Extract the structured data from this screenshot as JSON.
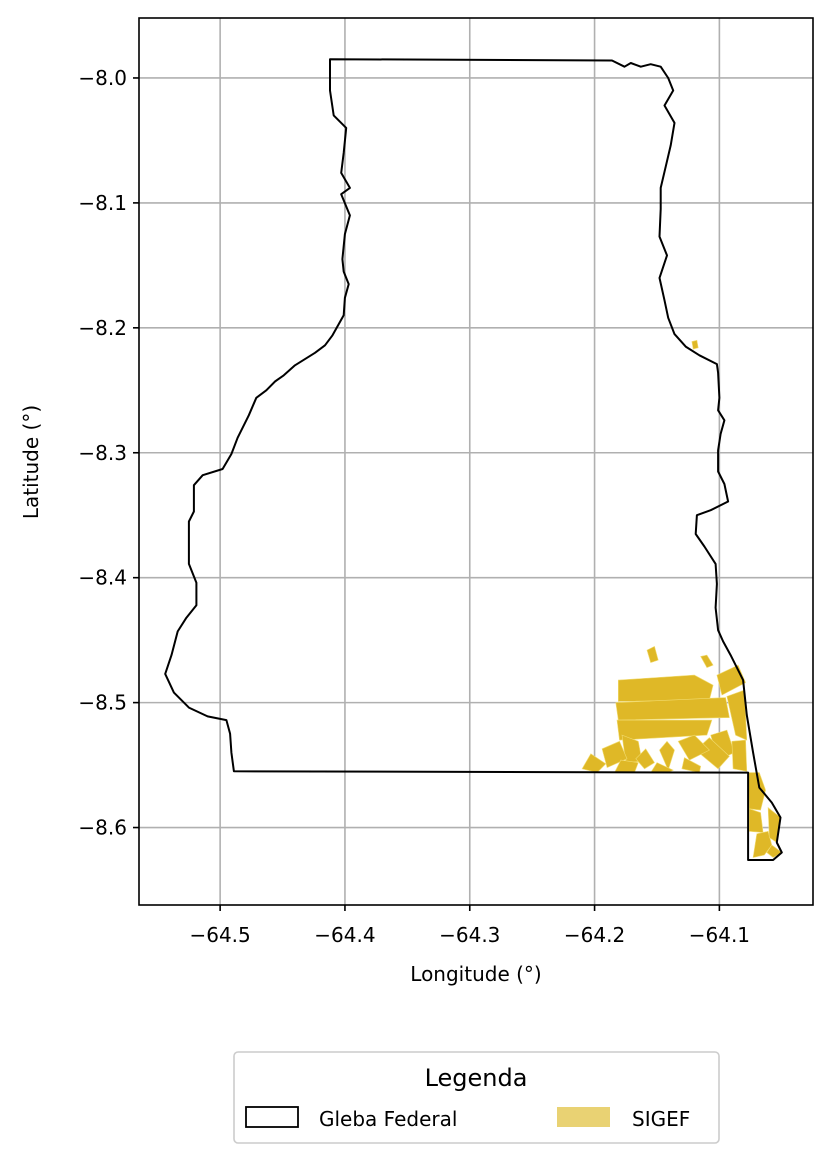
{
  "map": {
    "xlabel": "Longitude (°)",
    "ylabel": "Latitude (°)",
    "xlim": [
      -64.565,
      -64.025
    ],
    "ylim": [
      -8.662,
      -7.952
    ],
    "grid": true,
    "xticks": [
      -64.5,
      -64.4,
      -64.3,
      -64.2,
      -64.1
    ],
    "yticks": [
      -8.0,
      -8.1,
      -8.2,
      -8.3,
      -8.4,
      -8.5,
      -8.6
    ],
    "xtick_labels": [
      "−64.5",
      "−64.4",
      "−64.3",
      "−64.2",
      "−64.1"
    ],
    "ytick_labels": [
      "−8.0",
      "−8.1",
      "−8.2",
      "−8.3",
      "−8.4",
      "−8.5",
      "−8.6"
    ]
  },
  "colors": {
    "gleba_outline": "#000000",
    "sigef_fill": "#dfb827",
    "sigef_legend_fill": "#e9d273",
    "grid": "#b0b0b0"
  },
  "legend": {
    "title": "Legenda",
    "items": [
      {
        "label": "Gleba Federal"
      },
      {
        "label": "SIGEF"
      }
    ]
  },
  "chart_data": {
    "type": "map",
    "gleba_federal_outline": [
      [
        -64.412,
        -7.985
      ],
      [
        -64.186,
        -7.986
      ],
      [
        -64.176,
        -7.991
      ],
      [
        -64.171,
        -7.988
      ],
      [
        -64.163,
        -7.991
      ],
      [
        -64.155,
        -7.989
      ],
      [
        -64.147,
        -7.991
      ],
      [
        -64.141,
        -8.0
      ],
      [
        -64.137,
        -8.01
      ],
      [
        -64.144,
        -8.022
      ],
      [
        -64.136,
        -8.036
      ],
      [
        -64.139,
        -8.054
      ],
      [
        -64.143,
        -8.071
      ],
      [
        -64.147,
        -8.088
      ],
      [
        -64.147,
        -8.105
      ],
      [
        -64.148,
        -8.127
      ],
      [
        -64.142,
        -8.142
      ],
      [
        -64.148,
        -8.16
      ],
      [
        -64.144,
        -8.178
      ],
      [
        -64.141,
        -8.192
      ],
      [
        -64.136,
        -8.205
      ],
      [
        -64.127,
        -8.215
      ],
      [
        -64.116,
        -8.222
      ],
      [
        -64.102,
        -8.229
      ],
      [
        -64.101,
        -8.236
      ],
      [
        -64.1,
        -8.256
      ],
      [
        -64.101,
        -8.266
      ],
      [
        -64.096,
        -8.274
      ],
      [
        -64.099,
        -8.285
      ],
      [
        -64.101,
        -8.298
      ],
      [
        -64.101,
        -8.315
      ],
      [
        -64.096,
        -8.325
      ],
      [
        -64.093,
        -8.339
      ],
      [
        -64.107,
        -8.346
      ],
      [
        -64.118,
        -8.35
      ],
      [
        -64.119,
        -8.365
      ],
      [
        -64.112,
        -8.375
      ],
      [
        -64.103,
        -8.389
      ],
      [
        -64.102,
        -8.405
      ],
      [
        -64.103,
        -8.424
      ],
      [
        -64.101,
        -8.442
      ],
      [
        -64.097,
        -8.451
      ],
      [
        -64.091,
        -8.462
      ],
      [
        -64.081,
        -8.482
      ],
      [
        -64.078,
        -8.51
      ],
      [
        -64.073,
        -8.54
      ],
      [
        -64.068,
        -8.568
      ],
      [
        -64.058,
        -8.58
      ],
      [
        -64.051,
        -8.592
      ],
      [
        -64.054,
        -8.612
      ],
      [
        -64.05,
        -8.62
      ],
      [
        -64.057,
        -8.626
      ],
      [
        -64.077,
        -8.626
      ],
      [
        -64.077,
        -8.556
      ],
      [
        -64.489,
        -8.555
      ],
      [
        -64.491,
        -8.54
      ],
      [
        -64.492,
        -8.525
      ],
      [
        -64.495,
        -8.514
      ],
      [
        -64.51,
        -8.511
      ],
      [
        -64.525,
        -8.504
      ],
      [
        -64.537,
        -8.492
      ],
      [
        -64.544,
        -8.477
      ],
      [
        -64.539,
        -8.462
      ],
      [
        -64.534,
        -8.443
      ],
      [
        -64.527,
        -8.432
      ],
      [
        -64.519,
        -8.422
      ],
      [
        -64.519,
        -8.404
      ],
      [
        -64.525,
        -8.389
      ],
      [
        -64.525,
        -8.355
      ],
      [
        -64.521,
        -8.347
      ],
      [
        -64.521,
        -8.326
      ],
      [
        -64.514,
        -8.318
      ],
      [
        -64.498,
        -8.313
      ],
      [
        -64.491,
        -8.301
      ],
      [
        -64.486,
        -8.288
      ],
      [
        -64.477,
        -8.27
      ],
      [
        -64.471,
        -8.256
      ],
      [
        -64.463,
        -8.25
      ],
      [
        -64.456,
        -8.243
      ],
      [
        -64.449,
        -8.238
      ],
      [
        -64.44,
        -8.23
      ],
      [
        -64.424,
        -8.22
      ],
      [
        -64.416,
        -8.214
      ],
      [
        -64.41,
        -8.206
      ],
      [
        -64.401,
        -8.19
      ],
      [
        -64.4,
        -8.176
      ],
      [
        -64.397,
        -8.165
      ],
      [
        -64.401,
        -8.155
      ],
      [
        -64.402,
        -8.145
      ],
      [
        -64.4,
        -8.125
      ],
      [
        -64.396,
        -8.11
      ],
      [
        -64.403,
        -8.093
      ],
      [
        -64.396,
        -8.088
      ],
      [
        -64.403,
        -8.076
      ],
      [
        -64.401,
        -8.06
      ],
      [
        -64.399,
        -8.04
      ],
      [
        -64.409,
        -8.03
      ],
      [
        -64.412,
        -8.01
      ],
      [
        -64.412,
        -7.985
      ]
    ],
    "sigef_parcels": [
      [
        [
          -64.181,
          -8.482
        ],
        [
          -64.12,
          -8.478
        ],
        [
          -64.105,
          -8.486
        ],
        [
          -64.108,
          -8.498
        ],
        [
          -64.181,
          -8.499
        ]
      ],
      [
        [
          -64.183,
          -8.5
        ],
        [
          -64.095,
          -8.496
        ],
        [
          -64.092,
          -8.512
        ],
        [
          -64.181,
          -8.514
        ]
      ],
      [
        [
          -64.182,
          -8.514
        ],
        [
          -64.106,
          -8.514
        ],
        [
          -64.11,
          -8.526
        ],
        [
          -64.18,
          -8.53
        ]
      ],
      [
        [
          -64.102,
          -8.478
        ],
        [
          -64.085,
          -8.47
        ],
        [
          -64.079,
          -8.484
        ],
        [
          -64.098,
          -8.494
        ]
      ],
      [
        [
          -64.094,
          -8.495
        ],
        [
          -64.08,
          -8.49
        ],
        [
          -64.078,
          -8.53
        ],
        [
          -64.087,
          -8.526
        ]
      ],
      [
        [
          -64.107,
          -8.526
        ],
        [
          -64.094,
          -8.522
        ],
        [
          -64.088,
          -8.54
        ],
        [
          -64.101,
          -8.546
        ]
      ],
      [
        [
          -64.108,
          -8.528
        ],
        [
          -64.119,
          -8.538
        ],
        [
          -64.101,
          -8.553
        ],
        [
          -64.092,
          -8.543
        ]
      ],
      [
        [
          -64.09,
          -8.531
        ],
        [
          -64.079,
          -8.53
        ],
        [
          -64.078,
          -8.555
        ],
        [
          -64.089,
          -8.553
        ]
      ],
      [
        [
          -64.133,
          -8.531
        ],
        [
          -64.12,
          -8.526
        ],
        [
          -64.108,
          -8.538
        ],
        [
          -64.124,
          -8.546
        ]
      ],
      [
        [
          -64.142,
          -8.531
        ],
        [
          -64.136,
          -8.538
        ],
        [
          -64.141,
          -8.554
        ],
        [
          -64.148,
          -8.538
        ]
      ],
      [
        [
          -64.128,
          -8.544
        ],
        [
          -64.115,
          -8.551
        ],
        [
          -64.116,
          -8.556
        ],
        [
          -64.13,
          -8.553
        ]
      ],
      [
        [
          -64.15,
          -8.548
        ],
        [
          -64.137,
          -8.554
        ],
        [
          -64.141,
          -8.556
        ],
        [
          -64.155,
          -8.556
        ]
      ],
      [
        [
          -64.178,
          -8.526
        ],
        [
          -64.165,
          -8.531
        ],
        [
          -64.162,
          -8.547
        ],
        [
          -64.175,
          -8.548
        ]
      ],
      [
        [
          -64.194,
          -8.537
        ],
        [
          -64.18,
          -8.531
        ],
        [
          -64.174,
          -8.545
        ],
        [
          -64.19,
          -8.552
        ]
      ],
      [
        [
          -64.203,
          -8.541
        ],
        [
          -64.191,
          -8.549
        ],
        [
          -64.198,
          -8.556
        ],
        [
          -64.21,
          -8.553
        ]
      ],
      [
        [
          -64.179,
          -8.546
        ],
        [
          -64.165,
          -8.548
        ],
        [
          -64.168,
          -8.556
        ],
        [
          -64.184,
          -8.556
        ]
      ],
      [
        [
          -64.159,
          -8.537
        ],
        [
          -64.152,
          -8.548
        ],
        [
          -64.16,
          -8.553
        ],
        [
          -64.167,
          -8.545
        ]
      ],
      [
        [
          -64.077,
          -8.556
        ],
        [
          -64.068,
          -8.556
        ],
        [
          -64.063,
          -8.57
        ],
        [
          -64.067,
          -8.586
        ],
        [
          -64.076,
          -8.585
        ]
      ],
      [
        [
          -64.076,
          -8.585
        ],
        [
          -64.067,
          -8.588
        ],
        [
          -64.065,
          -8.604
        ],
        [
          -64.076,
          -8.603
        ]
      ],
      [
        [
          -64.07,
          -8.605
        ],
        [
          -64.061,
          -8.603
        ],
        [
          -64.058,
          -8.614
        ],
        [
          -64.064,
          -8.622
        ],
        [
          -64.073,
          -8.624
        ]
      ],
      [
        [
          -64.061,
          -8.584
        ],
        [
          -64.051,
          -8.592
        ],
        [
          -64.054,
          -8.612
        ],
        [
          -64.06,
          -8.608
        ]
      ],
      [
        [
          -64.058,
          -8.614
        ],
        [
          -64.05,
          -8.62
        ],
        [
          -64.057,
          -8.624
        ],
        [
          -64.062,
          -8.62
        ]
      ],
      [
        [
          -64.158,
          -8.458
        ],
        [
          -64.152,
          -8.455
        ],
        [
          -64.149,
          -8.466
        ],
        [
          -64.155,
          -8.468
        ]
      ],
      [
        [
          -64.115,
          -8.463
        ],
        [
          -64.11,
          -8.462
        ],
        [
          -64.105,
          -8.47
        ],
        [
          -64.11,
          -8.472
        ]
      ],
      [
        [
          -64.122,
          -8.211
        ],
        [
          -64.118,
          -8.21
        ],
        [
          -64.117,
          -8.216
        ],
        [
          -64.121,
          -8.217
        ]
      ]
    ]
  }
}
